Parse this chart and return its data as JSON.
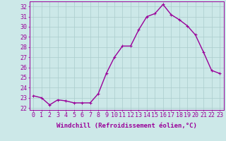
{
  "x": [
    0,
    1,
    2,
    3,
    4,
    5,
    6,
    7,
    8,
    9,
    10,
    11,
    12,
    13,
    14,
    15,
    16,
    17,
    18,
    19,
    20,
    21,
    22,
    23
  ],
  "y": [
    23.2,
    23.0,
    22.3,
    22.8,
    22.7,
    22.5,
    22.5,
    22.5,
    23.4,
    25.4,
    27.0,
    28.1,
    28.1,
    29.7,
    31.0,
    31.3,
    32.2,
    31.2,
    30.7,
    30.1,
    29.2,
    27.5,
    25.7,
    25.4
  ],
  "line_color": "#990099",
  "marker": "+",
  "background_color": "#cce8e8",
  "grid_color": "#aacccc",
  "ylabel_ticks": [
    22,
    23,
    24,
    25,
    26,
    27,
    28,
    29,
    30,
    31,
    32
  ],
  "ylim": [
    21.8,
    32.5
  ],
  "xlim": [
    -0.5,
    23.5
  ],
  "xlabel": "Windchill (Refroidissement éolien,°C)",
  "xlabel_fontsize": 6.5,
  "tick_fontsize": 6.0,
  "line_width": 1.0
}
